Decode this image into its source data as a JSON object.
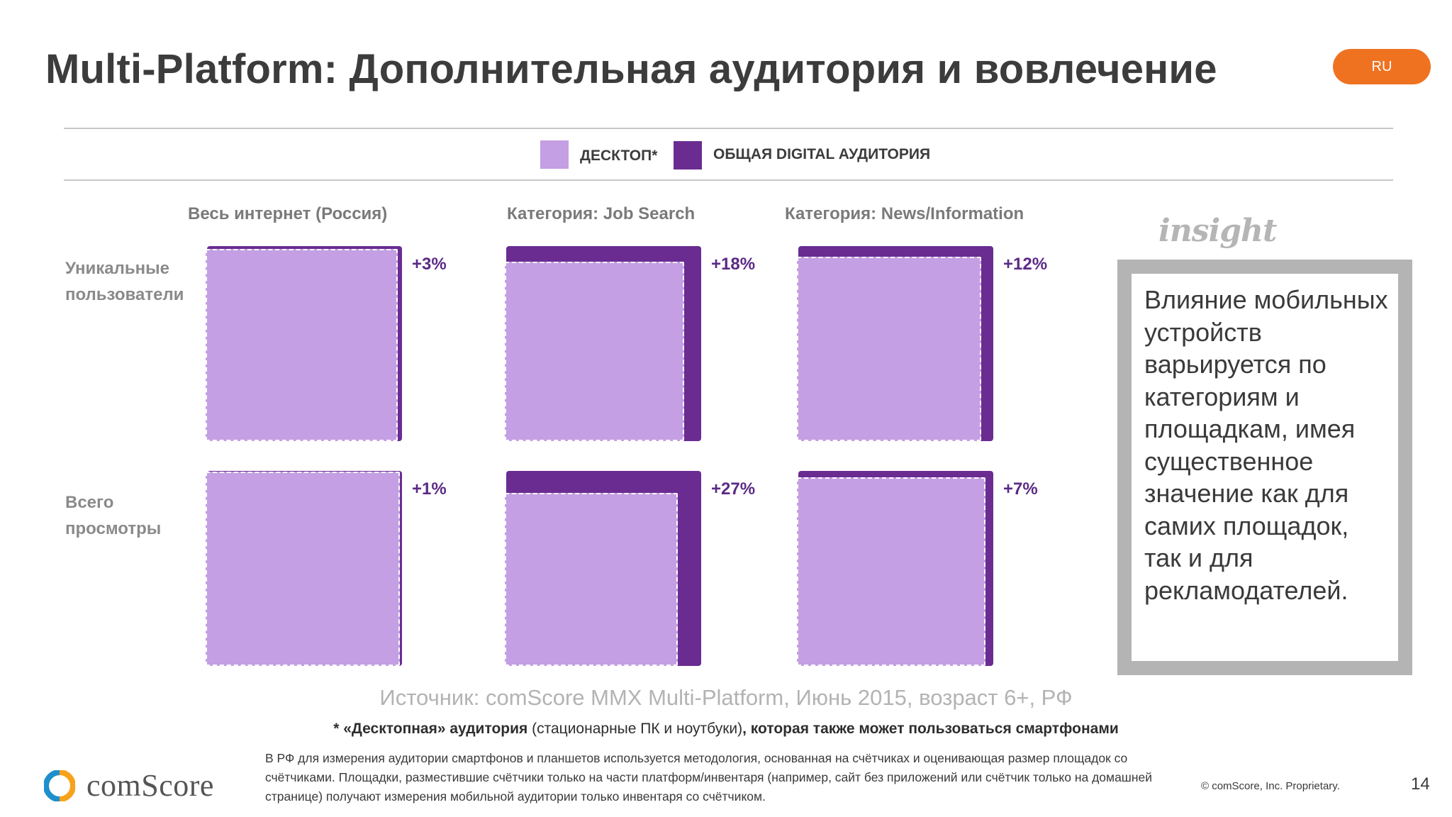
{
  "colors": {
    "desktop": "#c49fe3",
    "total": "#6a2c91",
    "accent": "#ef7221",
    "percent": "#5b2a86"
  },
  "title": "Multi-Platform: Дополнительная аудитория и вовлечение",
  "lang_badge": "RU",
  "legend": {
    "desktop": "ДЕСКТОП*",
    "total": "ОБЩАЯ DIGITAL АУДИТОРИЯ"
  },
  "columns": [
    "Весь интернет (Россия)",
    "Категория: Job Search",
    "Категория: News/Information"
  ],
  "rows": [
    "Уникальные пользователи",
    "Всего просмотры"
  ],
  "cells": [
    {
      "row": 0,
      "col": 0,
      "label": "+3%",
      "increase": 3
    },
    {
      "row": 0,
      "col": 1,
      "label": "+18%",
      "increase": 18
    },
    {
      "row": 0,
      "col": 2,
      "label": "+12%",
      "increase": 12
    },
    {
      "row": 1,
      "col": 0,
      "label": "+1%",
      "increase": 1
    },
    {
      "row": 1,
      "col": 1,
      "label": "+27%",
      "increase": 27
    },
    {
      "row": 1,
      "col": 2,
      "label": "+7%",
      "increase": 7
    }
  ],
  "insight": {
    "logo": "insight",
    "text": "Влияние мобильных устройств варьируется по категориям и площадкам, имея существенное значение как для самих площадок, так и для рекламодателей."
  },
  "source": "Источник: comScore MMX Multi-Platform, Июнь 2015, возраст 6+, РФ",
  "footnote": {
    "part1": "* «Десктопная» аудитория",
    "part2": " (стационарные ПК и ноутбуки)",
    "part3": ", которая также может пользоваться смартфонами"
  },
  "methodology": "В РФ для измерения аудитории смартфонов и планшетов используется методология, основанная на счётчиках и оценивающая размер площадок со счётчиками. Площадки, разместившие счётчики только на части платформ/инвентаря (например, сайт без приложений или счётчик только на домашней странице) получают измерения мобильной аудитории только инвентаря со счётчиком.",
  "logo_text": "comScore",
  "copyright": "© comScore, Inc. Proprietary.",
  "page_number": "14"
}
